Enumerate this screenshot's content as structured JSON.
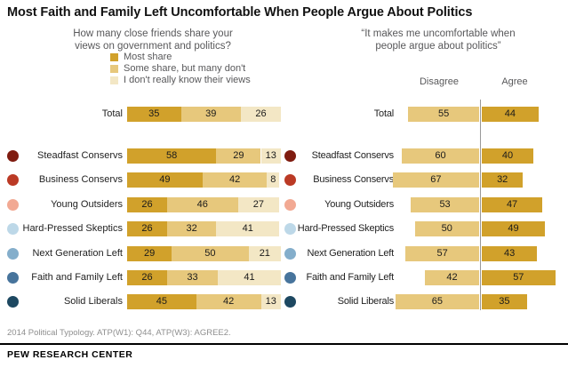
{
  "title": "Most Faith and Family Left Uncomfortable When People Argue About Politics",
  "colors": {
    "gold_dark": "#d1a12b",
    "gold_mid": "#e7c87c",
    "gold_light": "#f3e7c5",
    "divider": "#9a9a9a"
  },
  "left_chart": {
    "subtitle_lines": [
      "How many close friends share your",
      "views on government and politics?"
    ],
    "legend": [
      {
        "label": "Most share",
        "color": "#d1a12b"
      },
      {
        "label": "Some share, but many don't",
        "color": "#e7c87c"
      },
      {
        "label": "I don't really know their views",
        "color": "#f3e7c5"
      }
    ],
    "rows": [
      {
        "label": "Total",
        "dot": null,
        "values": [
          35,
          39,
          26
        ]
      },
      {
        "label": "Steadfast Conservs",
        "dot": "#7f1c10",
        "values": [
          58,
          29,
          13
        ]
      },
      {
        "label": "Business Conservs",
        "dot": "#bb3a25",
        "values": [
          49,
          42,
          8
        ]
      },
      {
        "label": "Young Outsiders",
        "dot": "#f2a993",
        "values": [
          26,
          46,
          27
        ]
      },
      {
        "label": "Hard-Pressed Skeptics",
        "dot": "#bdd8e8",
        "values": [
          26,
          32,
          41
        ]
      },
      {
        "label": "Next Generation Left",
        "dot": "#84aecb",
        "values": [
          29,
          50,
          21
        ]
      },
      {
        "label": "Faith and Family Left",
        "dot": "#47749c",
        "values": [
          26,
          33,
          41
        ]
      },
      {
        "label": "Solid Liberals",
        "dot": "#1d4861",
        "values": [
          45,
          42,
          13
        ]
      }
    ]
  },
  "right_chart": {
    "subtitle_lines": [
      "“It makes me uncomfortable when",
      "people argue about politics”"
    ],
    "col_disagree": "Disagree",
    "col_agree": "Agree",
    "rows": [
      {
        "label": "Total",
        "dot": null,
        "disagree": 55,
        "agree": 44
      },
      {
        "label": "Steadfast Conservs",
        "dot": "#7f1c10",
        "disagree": 60,
        "agree": 40
      },
      {
        "label": "Business Conservs",
        "dot": "#bb3a25",
        "disagree": 67,
        "agree": 32
      },
      {
        "label": "Young Outsiders",
        "dot": "#f2a993",
        "disagree": 53,
        "agree": 47
      },
      {
        "label": "Hard-Pressed Skeptics",
        "dot": "#bdd8e8",
        "disagree": 50,
        "agree": 49
      },
      {
        "label": "Next Generation Left",
        "dot": "#84aecb",
        "disagree": 57,
        "agree": 43
      },
      {
        "label": "Faith and Family Left",
        "dot": "#47749c",
        "disagree": 42,
        "agree": 57
      },
      {
        "label": "Solid Liberals",
        "dot": "#1d4861",
        "disagree": 65,
        "agree": 35
      }
    ]
  },
  "footer": {
    "note": "2014 Political Typology. ATP(W1): Q44, ATP(W3): AGREE2.",
    "brand": "PEW RESEARCH CENTER"
  },
  "chart_data": [
    {
      "type": "bar",
      "subtype": "horizontal-stacked",
      "title": "How many close friends share your views on government and politics?",
      "categories": [
        "Total",
        "Steadfast Conservs",
        "Business Conservs",
        "Young Outsiders",
        "Hard-Pressed Skeptics",
        "Next Generation Left",
        "Faith and Family Left",
        "Solid Liberals"
      ],
      "series": [
        {
          "name": "Most share",
          "values": [
            35,
            58,
            49,
            26,
            26,
            29,
            26,
            45
          ]
        },
        {
          "name": "Some share, but many don't",
          "values": [
            39,
            29,
            42,
            46,
            32,
            50,
            33,
            42
          ]
        },
        {
          "name": "I don't really know their views",
          "values": [
            26,
            13,
            8,
            27,
            41,
            21,
            41,
            13
          ]
        }
      ],
      "xlim": [
        0,
        100
      ],
      "grid": false,
      "legend_position": "top",
      "data_labels": true
    },
    {
      "type": "bar",
      "subtype": "horizontal-diverging",
      "title": "It makes me uncomfortable when people argue about politics",
      "categories": [
        "Total",
        "Steadfast Conservs",
        "Business Conservs",
        "Young Outsiders",
        "Hard-Pressed Skeptics",
        "Next Generation Left",
        "Faith and Family Left",
        "Solid Liberals"
      ],
      "series": [
        {
          "name": "Disagree",
          "values": [
            55,
            60,
            67,
            53,
            50,
            57,
            42,
            65
          ]
        },
        {
          "name": "Agree",
          "values": [
            44,
            40,
            32,
            47,
            49,
            43,
            57,
            35
          ]
        }
      ],
      "xlim": [
        0,
        100
      ],
      "grid": false,
      "legend_position": "column-headers",
      "data_labels": true
    }
  ]
}
